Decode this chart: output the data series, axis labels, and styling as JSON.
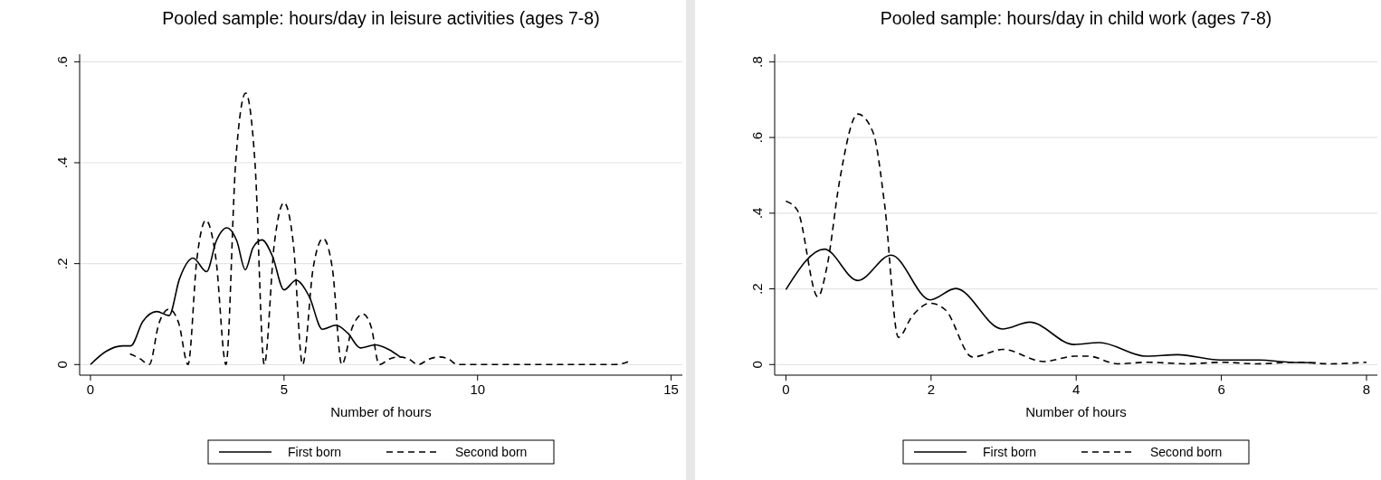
{
  "chart_data": [
    {
      "type": "line",
      "title": "Pooled sample: hours/day in leisure activities (ages 7-8)",
      "xlabel": "Number of hours",
      "xlim": [
        -0.28,
        15.29
      ],
      "ylim": [
        -0.021,
        0.615
      ],
      "xticks": [
        0,
        5,
        10,
        15
      ],
      "yticks": [
        {
          "value": 0,
          "label": "0"
        },
        {
          "value": 0.2,
          "label": ".2"
        },
        {
          "value": 0.4,
          "label": ".4"
        },
        {
          "value": 0.6,
          "label": ".6"
        }
      ],
      "grid": "y",
      "legend": "bottom",
      "series": [
        {
          "name": "First born",
          "color": "#000000",
          "line_style": "solid",
          "x": [
            0,
            0.4,
            0.82,
            1.04,
            1.35,
            1.71,
            2.03,
            2.3,
            2.65,
            3.0,
            3.25,
            3.52,
            3.78,
            4.0,
            4.2,
            4.43,
            4.7,
            5.0,
            5.31,
            5.65,
            5.99,
            6.34,
            6.65,
            6.97,
            7.35,
            7.7,
            8.0
          ],
          "values": [
            0,
            0.026,
            0.037,
            0.037,
            0.085,
            0.105,
            0.097,
            0.17,
            0.211,
            0.184,
            0.245,
            0.271,
            0.245,
            0.188,
            0.232,
            0.247,
            0.215,
            0.148,
            0.167,
            0.135,
            0.07,
            0.078,
            0.062,
            0.033,
            0.039,
            0.03,
            0.015
          ]
        },
        {
          "name": "Second born",
          "color": "#000000",
          "line_style": "dashed",
          "x": [
            1.02,
            1.27,
            1.52,
            1.77,
            2.03,
            2.28,
            2.52,
            2.75,
            2.98,
            3.24,
            3.5,
            3.75,
            4.01,
            4.25,
            4.49,
            4.75,
            5.0,
            5.24,
            5.48,
            5.75,
            6.01,
            6.25,
            6.49,
            6.77,
            7.04,
            7.25,
            7.46,
            7.72,
            7.97,
            8.22,
            8.47,
            8.75,
            9.02,
            9.25,
            9.48,
            13.56,
            13.95
          ],
          "values": [
            0.021,
            0.012,
            0,
            0.082,
            0.11,
            0.082,
            0,
            0.21,
            0.286,
            0.21,
            0,
            0.4,
            0.538,
            0.4,
            0,
            0.24,
            0.321,
            0.24,
            0,
            0.19,
            0.25,
            0.19,
            0,
            0.075,
            0.1,
            0.075,
            0,
            0.011,
            0.015,
            0.011,
            0,
            0.011,
            0.015,
            0.011,
            0,
            0,
            0.007
          ]
        }
      ]
    },
    {
      "type": "line",
      "title": "Pooled sample: hours/day in child work (ages 7-8)",
      "xlabel": "Number of hours",
      "xlim": [
        -0.155,
        8.15
      ],
      "ylim": [
        -0.028,
        0.82
      ],
      "xticks": [
        0,
        2,
        4,
        6,
        8
      ],
      "yticks": [
        {
          "value": 0,
          "label": "0"
        },
        {
          "value": 0.2,
          "label": ".2"
        },
        {
          "value": 0.4,
          "label": ".4"
        },
        {
          "value": 0.6,
          "label": ".6"
        },
        {
          "value": 0.8,
          "label": ".8"
        }
      ],
      "grid": "y",
      "legend": "bottom",
      "series": [
        {
          "name": "First born",
          "color": "#000000",
          "line_style": "solid",
          "x": [
            0,
            0.53,
            0.99,
            1.45,
            1.99,
            2.34,
            2.98,
            3.36,
            3.97,
            4.32,
            4.96,
            5.4,
            5.98,
            6.52,
            6.94,
            7.3
          ],
          "values": [
            0.198,
            0.305,
            0.222,
            0.289,
            0.171,
            0.201,
            0.094,
            0.112,
            0.053,
            0.058,
            0.022,
            0.026,
            0.012,
            0.012,
            0.006,
            0.005
          ]
        },
        {
          "name": "Second born",
          "color": "#000000",
          "line_style": "dashed",
          "x": [
            0,
            0.16,
            0.44,
            0.57,
            0.74,
            0.99,
            1.2,
            1.36,
            1.55,
            1.74,
            1.99,
            2.2,
            2.57,
            2.99,
            3.55,
            3.98,
            4.17,
            4.57,
            4.98,
            5.52,
            6.02,
            6.48,
            7.02,
            7.48,
            8.0
          ],
          "values": [
            0.432,
            0.407,
            0.179,
            0.263,
            0.486,
            0.662,
            0.614,
            0.423,
            0.072,
            0.128,
            0.162,
            0.144,
            0.02,
            0.04,
            0.008,
            0.022,
            0.022,
            0.002,
            0.006,
            0.002,
            0.006,
            0.002,
            0.006,
            0.002,
            0.006
          ]
        }
      ]
    }
  ]
}
